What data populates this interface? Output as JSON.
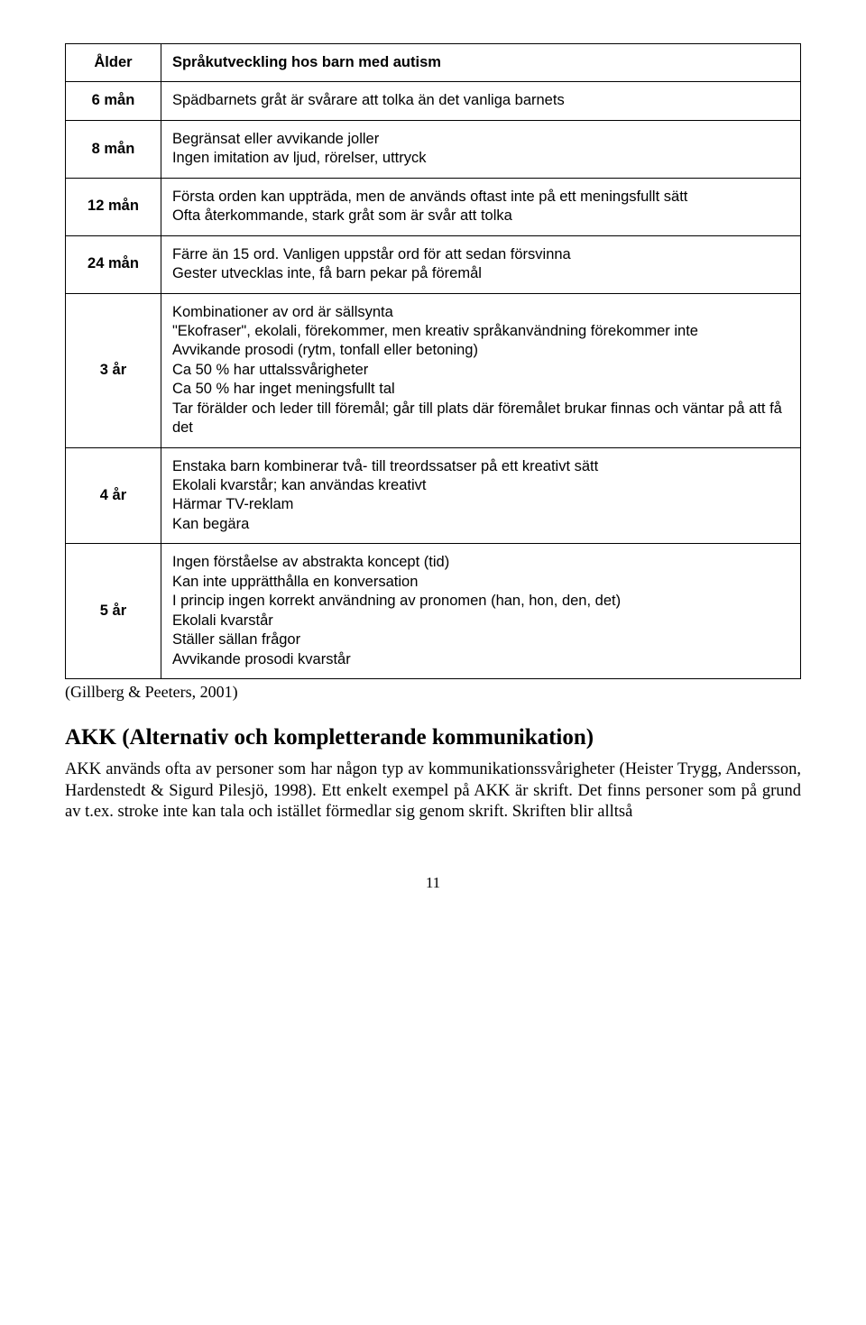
{
  "table": {
    "header": {
      "age": "Ålder",
      "desc": "Språkutveckling hos barn med autism"
    },
    "rows": [
      {
        "age": "6 mån",
        "lines": [
          "Spädbarnets gråt är svårare att tolka än det vanliga barnets"
        ]
      },
      {
        "age": "8 mån",
        "lines": [
          "Begränsat eller avvikande joller",
          "Ingen imitation av ljud, rörelser, uttryck"
        ]
      },
      {
        "age": "12 mån",
        "lines": [
          "Första orden kan uppträda, men de används oftast inte på ett meningsfullt sätt",
          "Ofta återkommande, stark gråt som är svår att tolka"
        ]
      },
      {
        "age": "24 mån",
        "lines": [
          "Färre än 15 ord. Vanligen uppstår ord för att sedan försvinna",
          "Gester utvecklas inte, få barn pekar på föremål"
        ]
      },
      {
        "age": "3 år",
        "lines": [
          "Kombinationer av ord är sällsynta",
          "\"Ekofraser\", ekolali, förekommer, men kreativ språkanvändning förekommer inte",
          "Avvikande prosodi (rytm, tonfall eller betoning)",
          "Ca 50 % har uttalssvårigheter",
          "Ca 50 % har inget meningsfullt tal",
          "Tar förälder och leder till föremål; går till plats där föremålet brukar finnas och väntar på att få det"
        ]
      },
      {
        "age": "4 år",
        "lines": [
          "Enstaka barn kombinerar två- till treordssatser på ett kreativt sätt",
          "Ekolali kvarstår; kan användas kreativt",
          "Härmar TV-reklam",
          "Kan begära"
        ]
      },
      {
        "age": "5 år",
        "lines": [
          "Ingen förståelse av abstrakta koncept (tid)",
          "Kan inte upprätthålla en konversation",
          "I princip ingen korrekt användning av pronomen (han, hon, den, det)",
          "Ekolali kvarstår",
          "Ställer sällan frågor",
          "Avvikande prosodi kvarstår"
        ]
      }
    ]
  },
  "citation": "(Gillberg & Peeters, 2001)",
  "section_title": "AKK (Alternativ och kompletterande kommunikation)",
  "body_para": "AKK används ofta av personer som har någon typ av kommunikationssvårigheter (Heister Trygg, Andersson, Hardenstedt & Sigurd Pilesjö, 1998). Ett enkelt exempel på AKK är skrift. Det finns personer som på grund av t.ex. stroke inte kan tala och istället förmedlar sig genom skrift. Skriften blir alltså",
  "page_number": "11"
}
